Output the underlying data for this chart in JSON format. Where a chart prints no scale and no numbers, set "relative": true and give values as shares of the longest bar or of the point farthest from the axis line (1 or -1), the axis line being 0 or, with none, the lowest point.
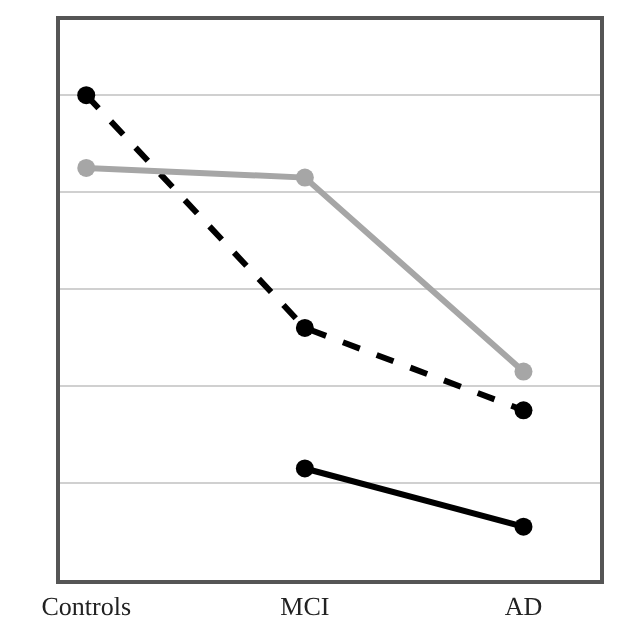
{
  "chart_data": {
    "type": "line",
    "relative": true,
    "categories": [
      "Controls",
      "MCI",
      "AD"
    ],
    "series": [
      {
        "color": "#000000",
        "line_style": "dashed",
        "values": [
          1,
          0.52,
          0.35
        ]
      },
      {
        "color": "#a6a6a6",
        "line_style": "solid",
        "values": [
          0.85,
          0.83,
          0.43
        ]
      },
      {
        "color": "#000000",
        "line_style": "solid",
        "values": [
          null,
          0.23,
          0.11
        ]
      }
    ],
    "marker": "circle",
    "grid": "y"
  }
}
